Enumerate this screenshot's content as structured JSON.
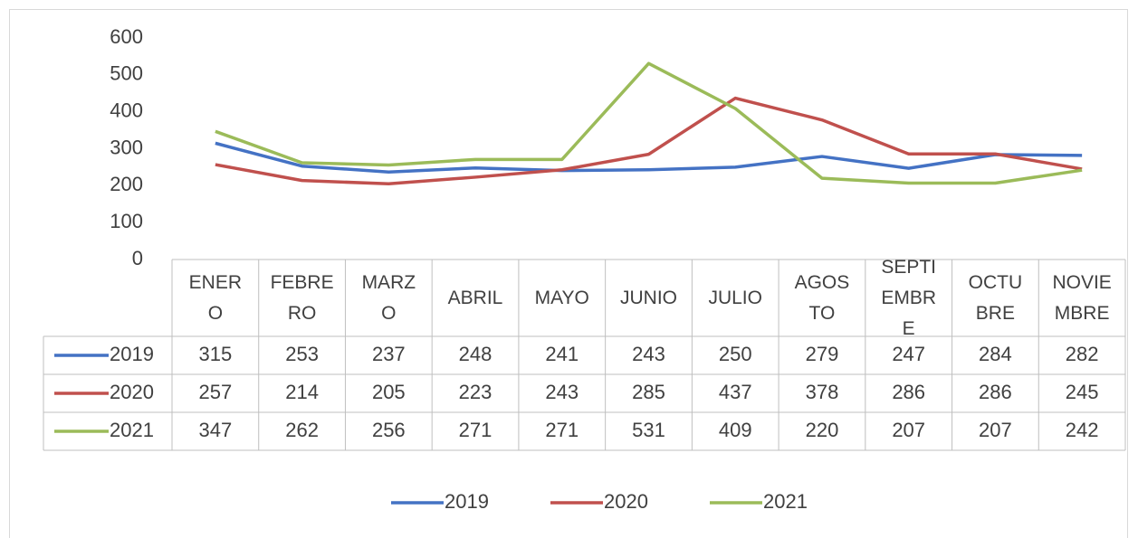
{
  "chart_data": {
    "type": "line",
    "categories": [
      "ENERO",
      "FEBRERO",
      "MARZO",
      "ABRIL",
      "MAYO",
      "JUNIO",
      "JULIO",
      "AGOSTO",
      "SEPTIEMBRE",
      "OCTUBRE",
      "NOVIEMBRE"
    ],
    "series": [
      {
        "name": "2019",
        "color": "#4472c4",
        "values": [
          315,
          253,
          237,
          248,
          241,
          243,
          250,
          279,
          247,
          284,
          282
        ]
      },
      {
        "name": "2020",
        "color": "#c0504d",
        "values": [
          257,
          214,
          205,
          223,
          243,
          285,
          437,
          378,
          286,
          286,
          245
        ]
      },
      {
        "name": "2021",
        "color": "#9bbb59",
        "values": [
          347,
          262,
          256,
          271,
          271,
          531,
          409,
          220,
          207,
          207,
          242
        ]
      }
    ],
    "ylim": [
      0,
      600
    ],
    "yticks": [
      0,
      100,
      200,
      300,
      400,
      500,
      600
    ],
    "legend": "bottom",
    "data_table": true
  }
}
